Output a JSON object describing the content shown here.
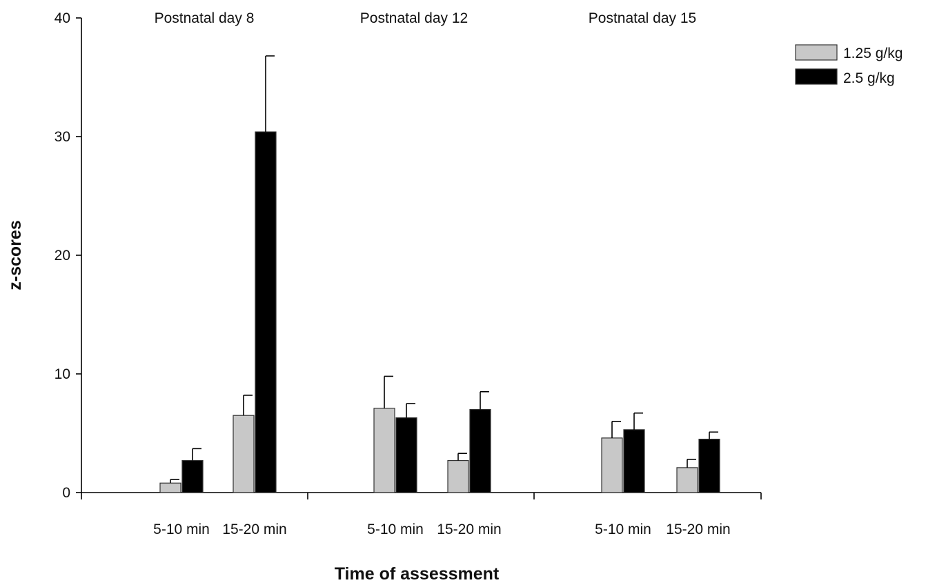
{
  "chart_data": {
    "type": "bar",
    "xlabel": "Time of assessment",
    "ylabel": "z-scores",
    "ylim": [
      0,
      40
    ],
    "yticks": [
      0,
      10,
      20,
      30,
      40
    ],
    "groups": [
      "Postnatal day 8",
      "Postnatal day 12",
      "Postnatal day 15"
    ],
    "categories": [
      "5-10 min",
      "15-20 min",
      "5-10 min",
      "15-20 min",
      "5-10 min",
      "15-20 min"
    ],
    "series": [
      {
        "name": "1.25 g/kg",
        "color": "#c8c8c8",
        "values": [
          0.8,
          6.5,
          7.1,
          2.7,
          4.6,
          2.1
        ],
        "errors": [
          0.3,
          1.7,
          2.7,
          0.6,
          1.4,
          0.7
        ]
      },
      {
        "name": "2.5 g/kg",
        "color": "#000000",
        "values": [
          2.7,
          30.4,
          6.3,
          7.0,
          5.3,
          4.5
        ],
        "errors": [
          1.0,
          6.4,
          1.2,
          1.5,
          1.4,
          0.6
        ]
      }
    ],
    "legend_position": "top-right",
    "grid": false
  }
}
